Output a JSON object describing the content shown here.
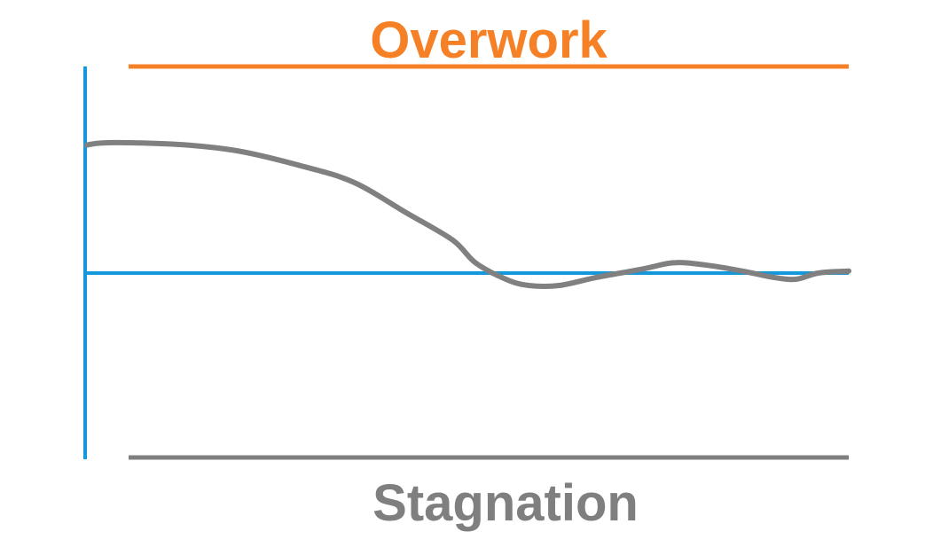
{
  "top_label": "Overwork",
  "bottom_label": "Stagnation",
  "colors": {
    "top_label": "#F58025",
    "top_line": "#F58025",
    "bottom_label": "#7F7F7F",
    "bottom_line": "#7F7F7F",
    "axis": "#1497DB",
    "curve": "#808080"
  },
  "curve": {
    "description_type": "damped-oscillation",
    "points": [
      [
        0.0,
        0.62
      ],
      [
        0.02,
        0.63
      ],
      [
        0.07,
        0.63
      ],
      [
        0.13,
        0.62
      ],
      [
        0.2,
        0.59
      ],
      [
        0.28,
        0.52
      ],
      [
        0.35,
        0.44
      ],
      [
        0.42,
        0.29
      ],
      [
        0.48,
        0.16
      ],
      [
        0.51,
        0.05
      ],
      [
        0.55,
        -0.03
      ],
      [
        0.58,
        -0.06
      ],
      [
        0.62,
        -0.06
      ],
      [
        0.67,
        -0.02
      ],
      [
        0.73,
        0.02
      ],
      [
        0.77,
        0.05
      ],
      [
        0.81,
        0.04
      ],
      [
        0.86,
        0.01
      ],
      [
        0.9,
        -0.02
      ],
      [
        0.93,
        -0.03
      ],
      [
        0.96,
        0.0
      ],
      [
        1.0,
        0.01
      ]
    ]
  }
}
